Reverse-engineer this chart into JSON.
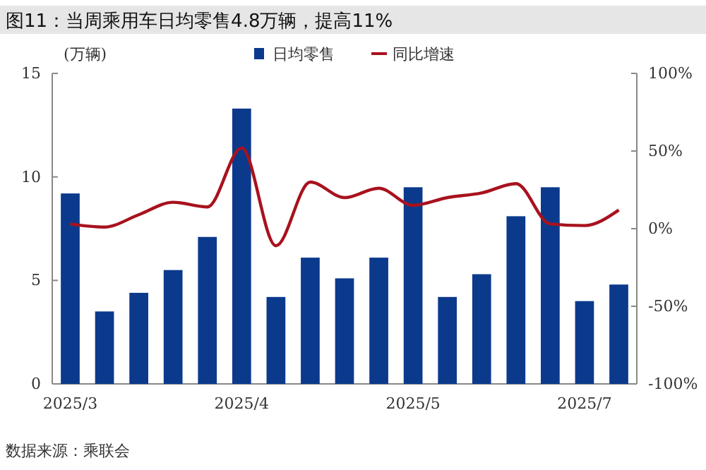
{
  "chart_data": {
    "type": "bar",
    "title": "图11：当周乘用车日均零售4.8万辆，提高11%",
    "ylabel": "(万辆)",
    "categories": [
      "2025/3",
      null,
      null,
      null,
      null,
      "2025/4",
      null,
      null,
      null,
      null,
      "2025/5",
      null,
      null,
      null,
      null,
      "2025/7",
      null
    ],
    "series": [
      {
        "name": "日均零售",
        "color": "#0b3a8c",
        "values": [
          9.2,
          3.5,
          4.4,
          5.5,
          7.1,
          13.3,
          4.2,
          6.1,
          5.1,
          6.1,
          9.5,
          4.2,
          5.3,
          8.1,
          9.5,
          4.0,
          4.8
        ]
      },
      {
        "name": "同比增速",
        "type": "line",
        "axis": "y2",
        "color": "#a8121e",
        "values": [
          3,
          1,
          9,
          17,
          14,
          52,
          -11,
          30,
          20,
          26,
          15,
          20,
          23,
          29,
          3,
          2,
          12
        ]
      }
    ],
    "ylim": [
      0,
      15
    ],
    "yticks": [
      0,
      5,
      10,
      15
    ],
    "y2lim": [
      -100,
      100
    ],
    "y2ticks": [
      {
        "value": -100,
        "label": "-100%"
      },
      {
        "value": -50,
        "label": "-50%"
      },
      {
        "value": 0,
        "label": "0%"
      },
      {
        "value": 50,
        "label": "50%"
      },
      {
        "value": 100,
        "label": "100%"
      }
    ],
    "legend": "top",
    "grid": false,
    "annotations": [
      "数据来源：乘联会"
    ]
  }
}
